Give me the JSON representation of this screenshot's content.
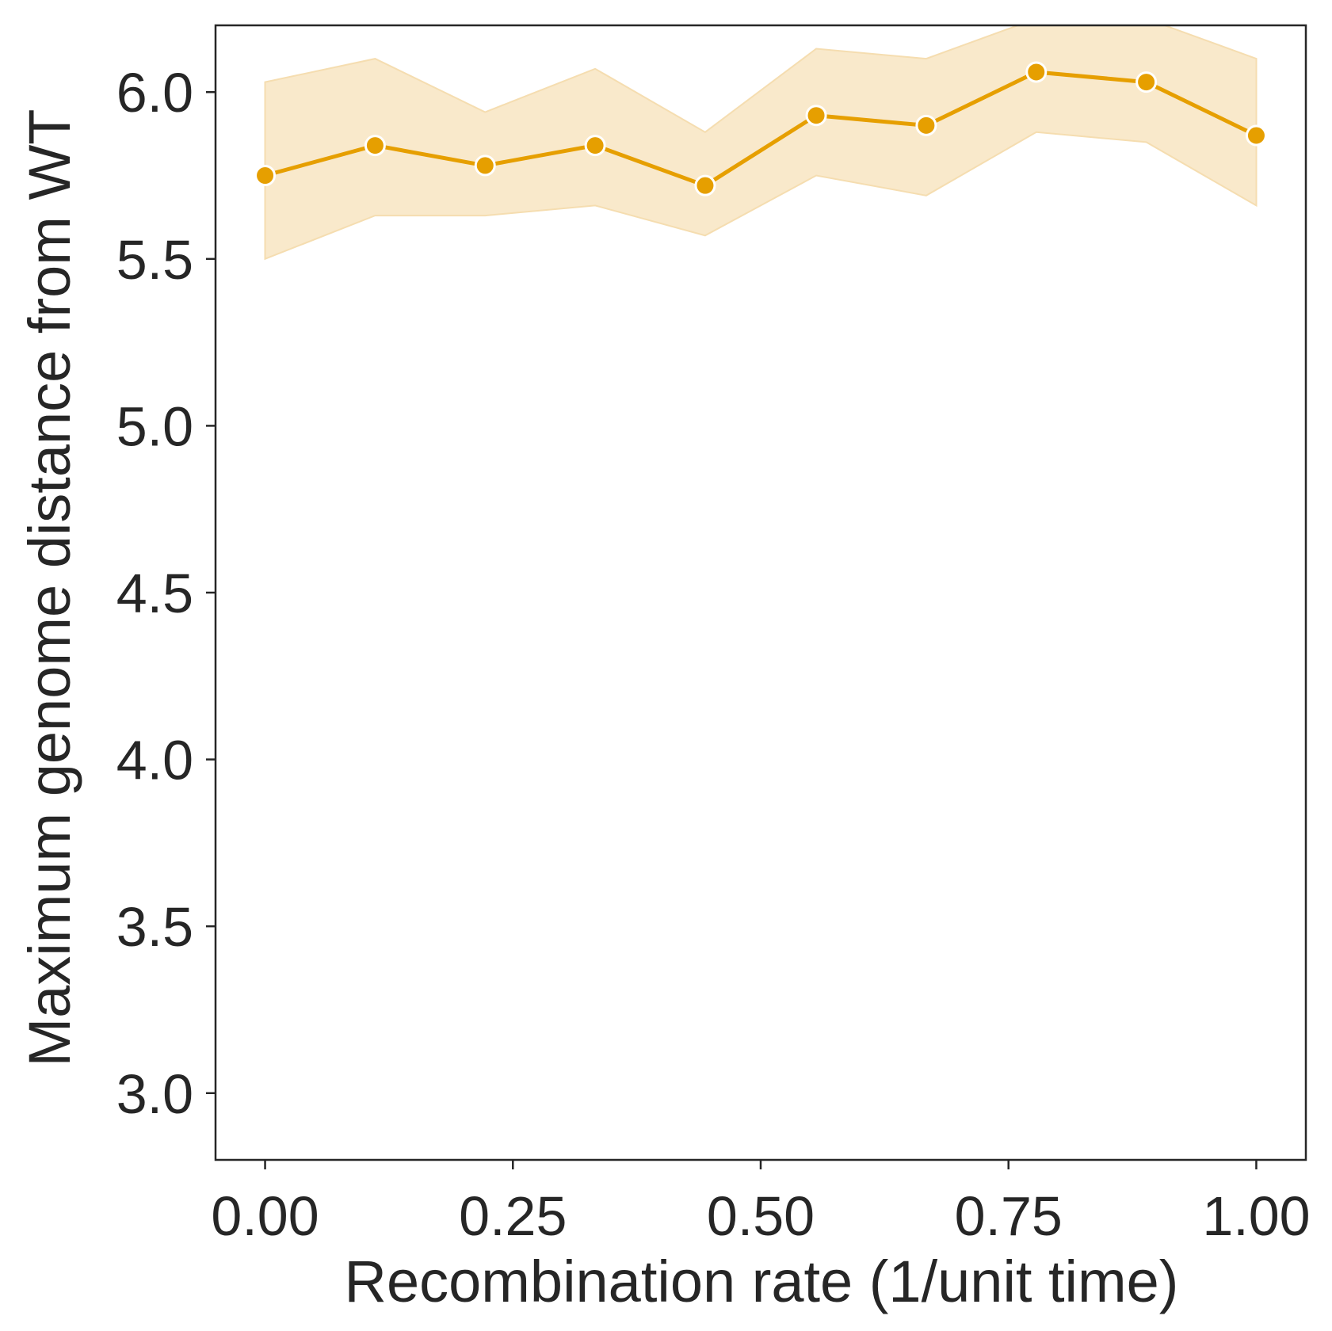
{
  "chart_data": {
    "type": "line",
    "title": "",
    "xlabel": "Recombination rate (1/unit time)",
    "ylabel": "Maximum genome distance from WT",
    "xlim": [
      -0.05,
      1.05
    ],
    "ylim": [
      2.8,
      6.2
    ],
    "xticks": [
      0.0,
      0.25,
      0.5,
      0.75,
      1.0
    ],
    "xtick_labels": [
      "0.00",
      "0.25",
      "0.50",
      "0.75",
      "1.00"
    ],
    "yticks": [
      3.0,
      3.5,
      4.0,
      4.5,
      5.0,
      5.5,
      6.0
    ],
    "ytick_labels": [
      "3.0",
      "3.5",
      "4.0",
      "4.5",
      "5.0",
      "5.5",
      "6.0"
    ],
    "grid": false,
    "series": [
      {
        "color": "#E69F00",
        "band_color": "#F9E9CB",
        "marker": "circle",
        "x": [
          0.0,
          0.111,
          0.222,
          0.333,
          0.444,
          0.556,
          0.667,
          0.778,
          0.889,
          1.0
        ],
        "y": [
          5.75,
          5.84,
          5.78,
          5.84,
          5.72,
          5.93,
          5.9,
          6.06,
          6.03,
          5.87
        ],
        "lower": [
          5.5,
          5.63,
          5.63,
          5.66,
          5.57,
          5.75,
          5.69,
          5.88,
          5.85,
          5.66
        ],
        "upper": [
          6.03,
          6.1,
          5.94,
          6.07,
          5.88,
          6.13,
          6.1,
          6.22,
          6.22,
          6.1
        ]
      }
    ]
  }
}
